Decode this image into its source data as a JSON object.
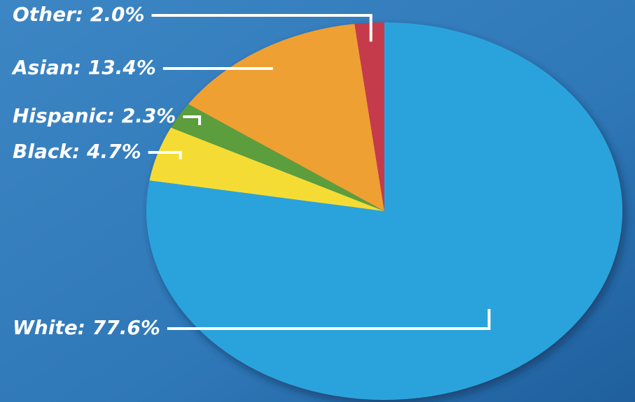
{
  "chart_data": {
    "type": "pie",
    "values": [
      77.6,
      4.7,
      2.3,
      13.4,
      2.0
    ],
    "value_labels": [
      "White: 77.6%",
      "Black: 4.7%",
      "Hispanic: 2.3%",
      "Asian: 13.4%",
      "Other: 2.0%"
    ],
    "colors": [
      "#29a3dc",
      "#f5dc36",
      "#5c9d3e",
      "#efa033",
      "#c63a4c"
    ]
  }
}
